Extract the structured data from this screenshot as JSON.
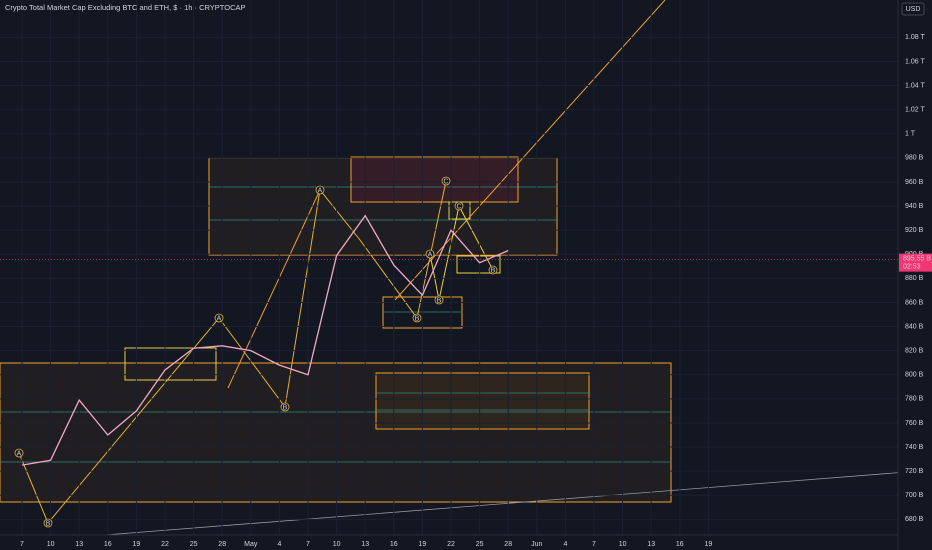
{
  "chart_data": {
    "type": "line",
    "title": "Crypto Total Market Cap Excluding BTC and ETH, $ · 1h · CRYPTOCAP",
    "currency_button": "USD",
    "categories": [
      "7",
      "10",
      "13",
      "16",
      "19",
      "22",
      "25",
      "28",
      "May",
      "4",
      "7",
      "10",
      "13",
      "16",
      "19",
      "22",
      "25",
      "28",
      "Jun",
      "4",
      "7",
      "10",
      "13",
      "16",
      "19"
    ],
    "series": [
      {
        "name": "CRYPTOCAP",
        "color": "#f2a7c3",
        "values": [
          725,
          729,
          779,
          750,
          770,
          804,
          822,
          824,
          820,
          808,
          800,
          899,
          932,
          891,
          866,
          920,
          893,
          903,
          null,
          null,
          null,
          null,
          null,
          null,
          null
        ]
      }
    ],
    "ylim": [
      667,
      1111
    ],
    "yticks": [
      {
        "value": 680,
        "label": "680 B"
      },
      {
        "value": 700,
        "label": "700 B"
      },
      {
        "value": 720,
        "label": "720 B"
      },
      {
        "value": 740,
        "label": "740 B"
      },
      {
        "value": 760,
        "label": "760 B"
      },
      {
        "value": 780,
        "label": "780 B"
      },
      {
        "value": 800,
        "label": "800 B"
      },
      {
        "value": 820,
        "label": "820 B"
      },
      {
        "value": 840,
        "label": "840 B"
      },
      {
        "value": 860,
        "label": "860 B"
      },
      {
        "value": 880,
        "label": "880 B"
      },
      {
        "value": 900,
        "label": "900 B"
      },
      {
        "value": 920,
        "label": "920 B"
      },
      {
        "value": 940,
        "label": "940 B"
      },
      {
        "value": 960,
        "label": "960 B"
      },
      {
        "value": 980,
        "label": "980 B"
      },
      {
        "value": 1000,
        "label": "1 T"
      },
      {
        "value": 1020,
        "label": "1.02 T"
      },
      {
        "value": 1040,
        "label": "1.04 T"
      },
      {
        "value": 1060,
        "label": "1.06 T"
      },
      {
        "value": 1080,
        "label": "1.08 T"
      }
    ],
    "grid": true,
    "last_price": 895.55,
    "last_price_label": "895.55 B",
    "countdown": "02:53",
    "wave_labels": [
      "A",
      "B",
      "A",
      "B",
      "A",
      "B",
      "C",
      "A",
      "B",
      "C",
      "B"
    ]
  }
}
